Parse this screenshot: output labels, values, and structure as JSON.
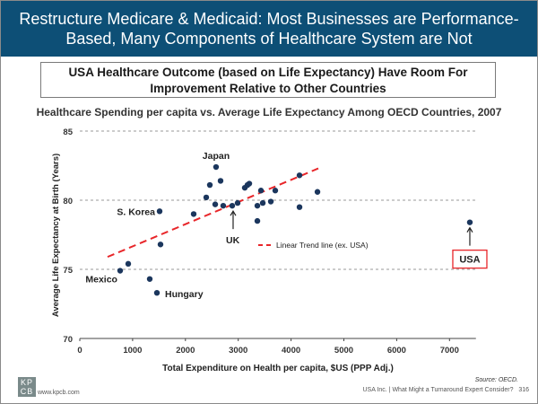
{
  "header": {
    "line1": "Restructure Medicare & Medicaid: Most Businesses are Performance-",
    "line2": "Based, Many Components of Healthcare System are Not",
    "background_color": "#0d4f76"
  },
  "subtitle": {
    "line1": "USA Healthcare Outcome (based on Life Expectancy) Have Room For",
    "line2": "Improvement Relative to Other Countries"
  },
  "footer": {
    "logo_top": "KP",
    "logo_bottom": "CB",
    "url": "www.kpcb.com",
    "source": "Source: OECD.",
    "right_text": "USA Inc. | What Might a Turnaround Expert Consider?",
    "page_number": "316"
  },
  "chart_data": {
    "type": "scatter",
    "title": "Healthcare Spending per capita vs. Average Life Expectancy Among OECD Countries, 2007",
    "xlabel": "Total Expenditure on Health per capita, $US (PPP Adj.)",
    "ylabel": "Average Life Expectancy at Birth (Years)",
    "xlim": [
      0,
      7500
    ],
    "ylim": [
      70,
      85
    ],
    "xticks": [
      0,
      1000,
      2000,
      3000,
      4000,
      5000,
      6000,
      7000
    ],
    "yticks": [
      70,
      75,
      80,
      85
    ],
    "grid": "horizontal-dashed",
    "point_color": "#1b365d",
    "trend_color": "#e8262a",
    "highlight_color": "#e8262a",
    "points": [
      {
        "x": 764,
        "y": 74.9,
        "label": "Mexico"
      },
      {
        "x": 917,
        "y": 75.4,
        "label": ""
      },
      {
        "x": 1324,
        "y": 74.3,
        "label": ""
      },
      {
        "x": 1460,
        "y": 73.3,
        "label": "Hungary"
      },
      {
        "x": 1528,
        "y": 76.8,
        "label": ""
      },
      {
        "x": 1511,
        "y": 79.2,
        "label": "S. Korea"
      },
      {
        "x": 2156,
        "y": 79.0,
        "label": ""
      },
      {
        "x": 2394,
        "y": 80.2,
        "label": ""
      },
      {
        "x": 2462,
        "y": 81.1,
        "label": ""
      },
      {
        "x": 2580,
        "y": 82.4,
        "label": "Japan"
      },
      {
        "x": 2665,
        "y": 81.4,
        "label": ""
      },
      {
        "x": 2564,
        "y": 79.7,
        "label": ""
      },
      {
        "x": 2716,
        "y": 79.6,
        "label": ""
      },
      {
        "x": 2886,
        "y": 79.6,
        "label": "UK"
      },
      {
        "x": 2988,
        "y": 79.8,
        "label": ""
      },
      {
        "x": 3124,
        "y": 80.9,
        "label": ""
      },
      {
        "x": 3175,
        "y": 81.1,
        "label": ""
      },
      {
        "x": 3209,
        "y": 81.2,
        "label": ""
      },
      {
        "x": 3430,
        "y": 80.7,
        "label": ""
      },
      {
        "x": 3701,
        "y": 80.7,
        "label": ""
      },
      {
        "x": 3362,
        "y": 79.6,
        "label": ""
      },
      {
        "x": 3464,
        "y": 79.8,
        "label": ""
      },
      {
        "x": 3617,
        "y": 79.9,
        "label": ""
      },
      {
        "x": 3362,
        "y": 78.5,
        "label": ""
      },
      {
        "x": 4160,
        "y": 81.8,
        "label": ""
      },
      {
        "x": 4160,
        "y": 79.5,
        "label": ""
      },
      {
        "x": 4500,
        "y": 80.6,
        "label": ""
      },
      {
        "x": 7385,
        "y": 78.4,
        "label": "USA"
      }
    ],
    "trend_line": {
      "label": "Linear Trend line (ex. USA)",
      "start": {
        "x": 526,
        "y": 75.9
      },
      "end": {
        "x": 4516,
        "y": 82.3
      }
    },
    "annotations": [
      {
        "text": "Japan",
        "x": 2580,
        "y": 82.4
      },
      {
        "text": "S. Korea",
        "x": 1511,
        "y": 79.2
      },
      {
        "text": "UK",
        "x": 2886,
        "y": 79.6
      },
      {
        "text": "Mexico",
        "x": 764,
        "y": 74.9
      },
      {
        "text": "Hungary",
        "x": 1460,
        "y": 73.3
      },
      {
        "text": "USA",
        "x": 7385,
        "y": 78.4
      }
    ]
  }
}
